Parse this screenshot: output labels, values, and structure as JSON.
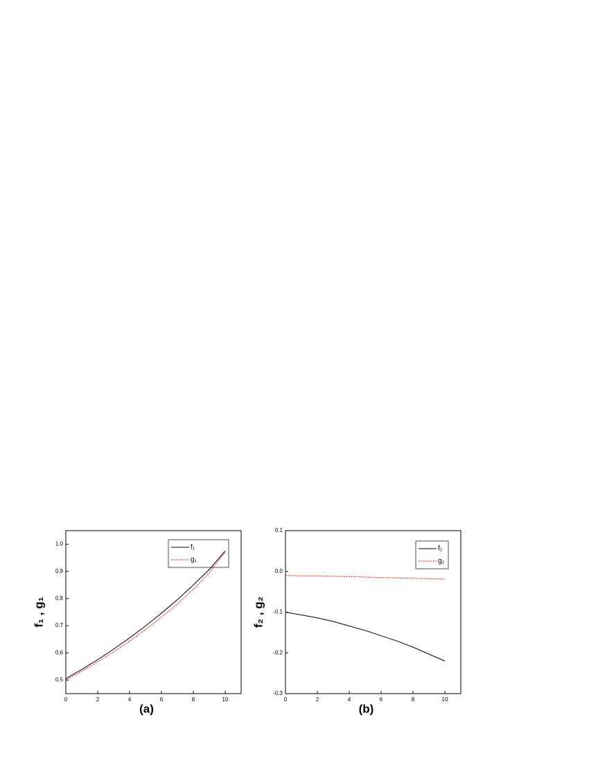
{
  "chart_data": [
    {
      "type": "line",
      "caption": "(a)",
      "y_label": "f₁ , g₁",
      "x": [
        0,
        1,
        2,
        3,
        4,
        5,
        6,
        7,
        8,
        9,
        10
      ],
      "series": [
        {
          "name": "f₁",
          "color": "#000000",
          "dash": false,
          "values": [
            0.505,
            0.539,
            0.575,
            0.614,
            0.655,
            0.699,
            0.746,
            0.796,
            0.85,
            0.907,
            0.975
          ]
        },
        {
          "name": "g₁",
          "color": "#ff0000",
          "dash": true,
          "values": [
            0.5,
            0.532,
            0.567,
            0.604,
            0.643,
            0.686,
            0.731,
            0.78,
            0.834,
            0.895,
            0.972
          ]
        }
      ],
      "xlim": [
        0,
        11
      ],
      "xticks": [
        0,
        2,
        4,
        6,
        8,
        10
      ],
      "ylim": [
        0.45,
        1.05
      ],
      "yticks": [
        0.5,
        0.6,
        0.7,
        0.8,
        0.9,
        {
          "value": 1,
          "label": "1.0"
        }
      ]
    },
    {
      "type": "line",
      "caption": "(b)",
      "y_label": "f₂ , g₂",
      "x": [
        0,
        1,
        2,
        3,
        4,
        5,
        6,
        7,
        8,
        9,
        10
      ],
      "series": [
        {
          "name": "f₂",
          "color": "#000000",
          "dash": false,
          "values": [
            -0.1,
            -0.107,
            -0.114,
            -0.123,
            -0.134,
            -0.145,
            -0.158,
            -0.171,
            -0.186,
            -0.203,
            -0.22
          ]
        },
        {
          "name": "g₂",
          "color": "#ff0000",
          "dash": true,
          "values": [
            -0.01,
            -0.011,
            -0.011,
            -0.012,
            -0.013,
            -0.014,
            -0.015,
            -0.016,
            -0.017,
            -0.018,
            -0.019
          ]
        }
      ],
      "xlim": [
        0,
        11
      ],
      "xticks": [
        0,
        2,
        4,
        6,
        8,
        10
      ],
      "ylim": [
        -0.3,
        0.1
      ],
      "yticks": [
        -0.3,
        -0.2,
        -0.1,
        {
          "value": 0,
          "label": "0.0"
        },
        0.1
      ]
    }
  ]
}
